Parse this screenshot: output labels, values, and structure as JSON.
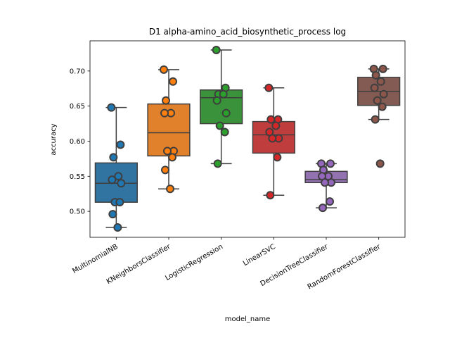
{
  "chart_data": {
    "type": "box",
    "title": "D1 alpha-amino_acid_biosynthetic_process log",
    "xlabel": "model_name",
    "ylabel": "accuracy",
    "ylim": [
      0.463,
      0.743
    ],
    "yticks": [
      0.5,
      0.55,
      0.6,
      0.65,
      0.7
    ],
    "ytick_labels": [
      "0.50",
      "0.55",
      "0.60",
      "0.65",
      "0.70"
    ],
    "grid": false,
    "categories": [
      "MultinomialNB",
      "KNeighborsClassifier",
      "LogisticRegression",
      "LinearSVC",
      "DecisionTreeClassifier",
      "RandomForestClassifier"
    ],
    "colors": [
      "#3274a1",
      "#e1812c",
      "#3a923a",
      "#c03d3e",
      "#9372b2",
      "#845b53"
    ],
    "point_colors": [
      "#1f77b4",
      "#ff7f0e",
      "#2ca02c",
      "#d62728",
      "#9467bd",
      "#8c564b"
    ],
    "series": [
      {
        "box": {
          "whisker_low": 0.477,
          "q1": 0.513,
          "median": 0.54,
          "q3": 0.569,
          "whisker_high": 0.648
        },
        "points": [
          0.648,
          0.595,
          0.577,
          0.55,
          0.545,
          0.54,
          0.513,
          0.513,
          0.496,
          0.477
        ]
      },
      {
        "box": {
          "whisker_low": 0.532,
          "q1": 0.579,
          "median": 0.612,
          "q3": 0.653,
          "whisker_high": 0.702
        },
        "points": [
          0.702,
          0.685,
          0.658,
          0.64,
          0.64,
          0.586,
          0.586,
          0.577,
          0.559,
          0.532
        ]
      },
      {
        "box": {
          "whisker_low": 0.568,
          "q1": 0.625,
          "median": 0.662,
          "q3": 0.673,
          "whisker_high": 0.73
        },
        "points": [
          0.73,
          0.676,
          0.667,
          0.667,
          0.658,
          0.64,
          0.622,
          0.613,
          0.568
        ]
      },
      {
        "box": {
          "whisker_low": 0.523,
          "q1": 0.583,
          "median": 0.609,
          "q3": 0.628,
          "whisker_high": 0.676
        },
        "points": [
          0.676,
          0.631,
          0.631,
          0.622,
          0.613,
          0.604,
          0.604,
          0.577,
          0.523
        ]
      },
      {
        "box": {
          "whisker_low": 0.505,
          "q1": 0.541,
          "median": 0.545,
          "q3": 0.557,
          "whisker_high": 0.568
        },
        "points": [
          0.568,
          0.568,
          0.559,
          0.55,
          0.55,
          0.541,
          0.541,
          0.514,
          0.505
        ]
      },
      {
        "box": {
          "whisker_low": 0.631,
          "q1": 0.651,
          "median": 0.671,
          "q3": 0.691,
          "whisker_high": 0.703
        },
        "points": [
          0.703,
          0.703,
          0.694,
          0.685,
          0.676,
          0.667,
          0.658,
          0.649,
          0.631,
          0.568
        ]
      }
    ]
  }
}
